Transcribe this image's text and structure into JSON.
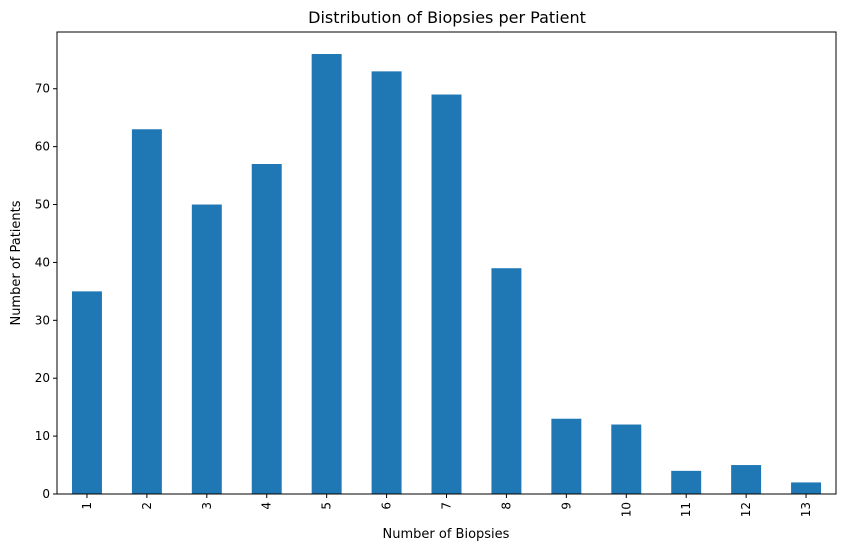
{
  "chart_data": {
    "type": "bar",
    "title": "Distribution of Biopsies per Patient",
    "xlabel": "Number of Biopsies",
    "ylabel": "Number of Patients",
    "categories": [
      "1",
      "2",
      "3",
      "4",
      "5",
      "6",
      "7",
      "8",
      "9",
      "10",
      "11",
      "12",
      "13"
    ],
    "values": [
      35,
      63,
      50,
      57,
      76,
      73,
      69,
      39,
      13,
      12,
      4,
      5,
      2
    ],
    "ylim": [
      0,
      79.8
    ],
    "yticks": [
      0,
      10,
      20,
      30,
      40,
      50,
      60,
      70
    ],
    "grid": false,
    "legend": false,
    "bar_color": "#1f77b4",
    "xtick_rotation": 90
  }
}
